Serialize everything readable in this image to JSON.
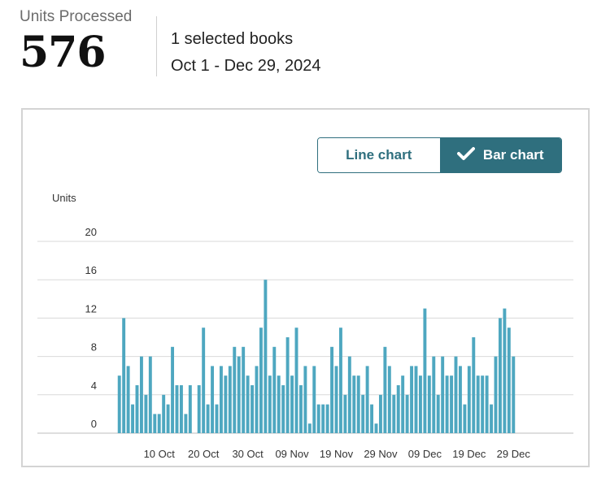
{
  "header": {
    "metric_label": "Units Processed",
    "metric_value": "576",
    "selected_books": "1 selected books",
    "date_range": "Oct 1 - Dec 29, 2024"
  },
  "toggle": {
    "line_label": "Line chart",
    "bar_label": "Bar chart",
    "selected": "bar"
  },
  "colors": {
    "bar": "#4ea7c0",
    "accent": "#2f6f7e",
    "grid": "#d9d9d9"
  },
  "chart_data": {
    "type": "bar",
    "ylabel": "Units",
    "ylim": [
      0,
      20
    ],
    "yticks": [
      0,
      4,
      8,
      12,
      16,
      20
    ],
    "grid": true,
    "x_start": "2024-10-01",
    "x_end": "2024-12-29",
    "x_tick_labels": [
      {
        "label": "10 Oct",
        "date": "2024-10-10"
      },
      {
        "label": "20 Oct",
        "date": "2024-10-20"
      },
      {
        "label": "30 Oct",
        "date": "2024-10-30"
      },
      {
        "label": "09 Nov",
        "date": "2024-11-09"
      },
      {
        "label": "19 Nov",
        "date": "2024-11-19"
      },
      {
        "label": "29 Nov",
        "date": "2024-11-29"
      },
      {
        "label": "09 Dec",
        "date": "2024-12-09"
      },
      {
        "label": "19 Dec",
        "date": "2024-12-19"
      },
      {
        "label": "29 Dec",
        "date": "2024-12-29"
      }
    ],
    "values": [
      6,
      12,
      7,
      3,
      5,
      8,
      4,
      8,
      2,
      2,
      4,
      3,
      9,
      5,
      5,
      2,
      5,
      0,
      5,
      11,
      3,
      7,
      3,
      7,
      6,
      7,
      9,
      8,
      9,
      6,
      5,
      7,
      11,
      16,
      6,
      9,
      6,
      5,
      10,
      6,
      11,
      5,
      7,
      1,
      7,
      3,
      3,
      3,
      9,
      7,
      11,
      4,
      8,
      6,
      6,
      4,
      7,
      3,
      1,
      4,
      9,
      7,
      4,
      5,
      6,
      4,
      7,
      7,
      6,
      13,
      6,
      8,
      4,
      8,
      6,
      6,
      8,
      7,
      3,
      7,
      10,
      6,
      6,
      6,
      3,
      8,
      12,
      13,
      11,
      8
    ]
  }
}
